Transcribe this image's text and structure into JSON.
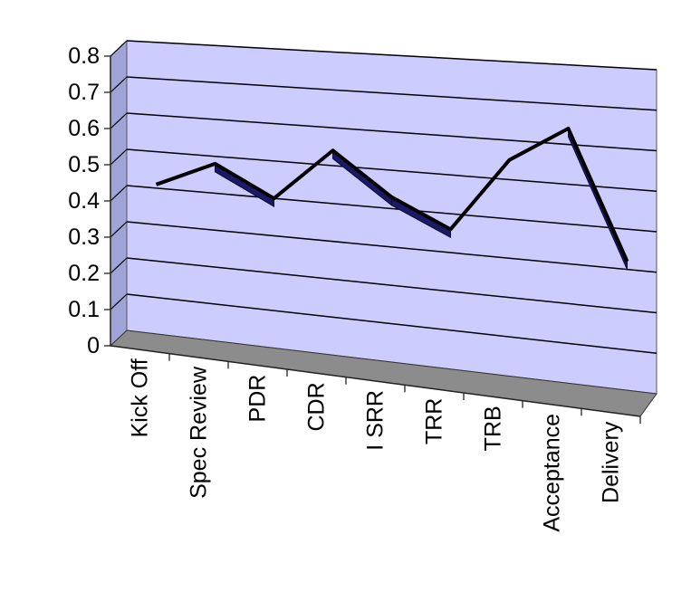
{
  "chart_data": {
    "type": "line",
    "title": "",
    "xlabel": "",
    "ylabel": "",
    "categories": [
      "Kick Off",
      "Spec Review",
      "PDR",
      "CDR",
      "I SRR",
      "TRR",
      "TRB",
      "Acceptance",
      "Delivery"
    ],
    "series": [
      {
        "values": [
          0.41,
          0.48,
          0.4,
          0.54,
          0.43,
          0.36,
          0.55,
          0.64,
          0.32
        ]
      }
    ],
    "ylim": [
      0,
      0.8
    ],
    "yticks": [
      "0",
      "0.1",
      "0.2",
      "0.3",
      "0.4",
      "0.5",
      "0.6",
      "0.7",
      "0.8"
    ],
    "grid": true,
    "legend": "none",
    "style": "3d-line",
    "colors": {
      "plot_background": "#ccccff",
      "side_wall": "#9fa3d6",
      "floor": "#8c8c8c",
      "line": "#000000",
      "ribbon": "#1a1a66"
    }
  }
}
